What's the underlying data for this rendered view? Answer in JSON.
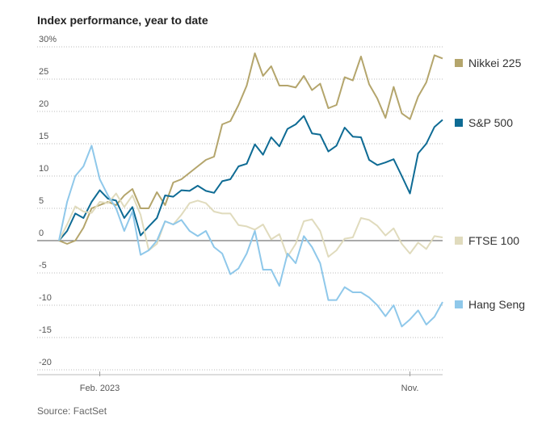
{
  "chart_data": {
    "type": "line",
    "title": "Index performance, year to date",
    "source": "Source: FactSet",
    "categories": [
      null,
      null,
      null,
      null,
      null,
      "Feb. 2023",
      null,
      null,
      null,
      null,
      null,
      null,
      null,
      null,
      null,
      null,
      null,
      null,
      null,
      null,
      null,
      null,
      null,
      null,
      null,
      null,
      null,
      null,
      null,
      null,
      null,
      null,
      null,
      null,
      null,
      null,
      null,
      null,
      null,
      null,
      null,
      null,
      null,
      "Nov.",
      null,
      null,
      null,
      null
    ],
    "ylim": [
      -20,
      30
    ],
    "yticks": [
      -20,
      -15,
      -10,
      -5,
      0,
      5,
      10,
      15,
      20,
      25,
      {
        "value": 30,
        "label": "30%"
      }
    ],
    "grid": true,
    "series": [
      {
        "name": "Nikkei 225",
        "color": "#b4a56c",
        "values": [
          0,
          -0.5,
          0,
          2,
          5,
          5.5,
          6,
          5.5,
          7,
          8,
          5,
          5,
          7.5,
          5.5,
          9,
          9.5,
          10.5,
          11.5,
          12.5,
          13,
          18,
          18.5,
          21,
          24,
          29,
          25.5,
          27,
          24,
          24,
          23.7,
          25.5,
          23.3,
          24.3,
          20.5,
          21,
          25.3,
          24.8,
          28.5,
          24.2,
          22,
          19,
          23.8,
          19.7,
          18.8,
          22.3,
          24.5,
          28.7,
          28.2
        ]
      },
      {
        "name": "S&P 500",
        "color": "#0e6b94",
        "values": [
          0,
          1.5,
          4.2,
          3.5,
          6,
          7.8,
          6.5,
          6.2,
          3.5,
          5.2,
          0.8,
          2.2,
          3.5,
          7,
          6.8,
          7.8,
          7.7,
          8.5,
          7.7,
          7.4,
          9.2,
          9.5,
          11.5,
          11.9,
          14.9,
          13.3,
          16,
          14.6,
          17.3,
          18,
          19.3,
          16.6,
          16.4,
          13.8,
          14.7,
          17.5,
          16.1,
          16,
          12.5,
          11.7,
          12.1,
          12.6,
          10,
          7.3,
          13.5,
          15,
          17.6,
          18.7
        ]
      },
      {
        "name": "FTSE 100",
        "color": "#e0dbbd",
        "values": [
          0,
          2.5,
          5.3,
          4.5,
          4.3,
          6,
          5.8,
          7.3,
          5.2,
          7,
          4,
          -1.5,
          -0.5,
          3,
          2.5,
          4,
          5.8,
          6.2,
          5.8,
          4.5,
          4.2,
          4.2,
          2.4,
          2.2,
          1.7,
          2.5,
          0.2,
          1,
          -2.5,
          -0.5,
          3,
          3.3,
          1.5,
          -2.5,
          -1.5,
          0.3,
          0.5,
          3.5,
          3.2,
          2.3,
          0.8,
          1.9,
          -0.5,
          -2,
          -0.3,
          -1.3,
          0.7,
          0.5
        ]
      },
      {
        "name": "Hang Seng",
        "color": "#8fc8ea",
        "values": [
          0,
          6,
          10,
          11.5,
          14.7,
          9.5,
          7,
          5,
          1.5,
          4.5,
          -2.2,
          -1.5,
          0,
          3,
          2.5,
          3.2,
          1.5,
          0.7,
          1.5,
          -1,
          -2,
          -5.2,
          -4.3,
          -2,
          1.5,
          -4.5,
          -4.5,
          -7,
          -2,
          -3.5,
          0.7,
          -1,
          -3.5,
          -9.2,
          -9.2,
          -7.2,
          -8,
          -8,
          -8.8,
          -10,
          -11.7,
          -10,
          -13.3,
          -12.2,
          -10.8,
          -13,
          -11.8,
          -9.5
        ]
      }
    ]
  }
}
